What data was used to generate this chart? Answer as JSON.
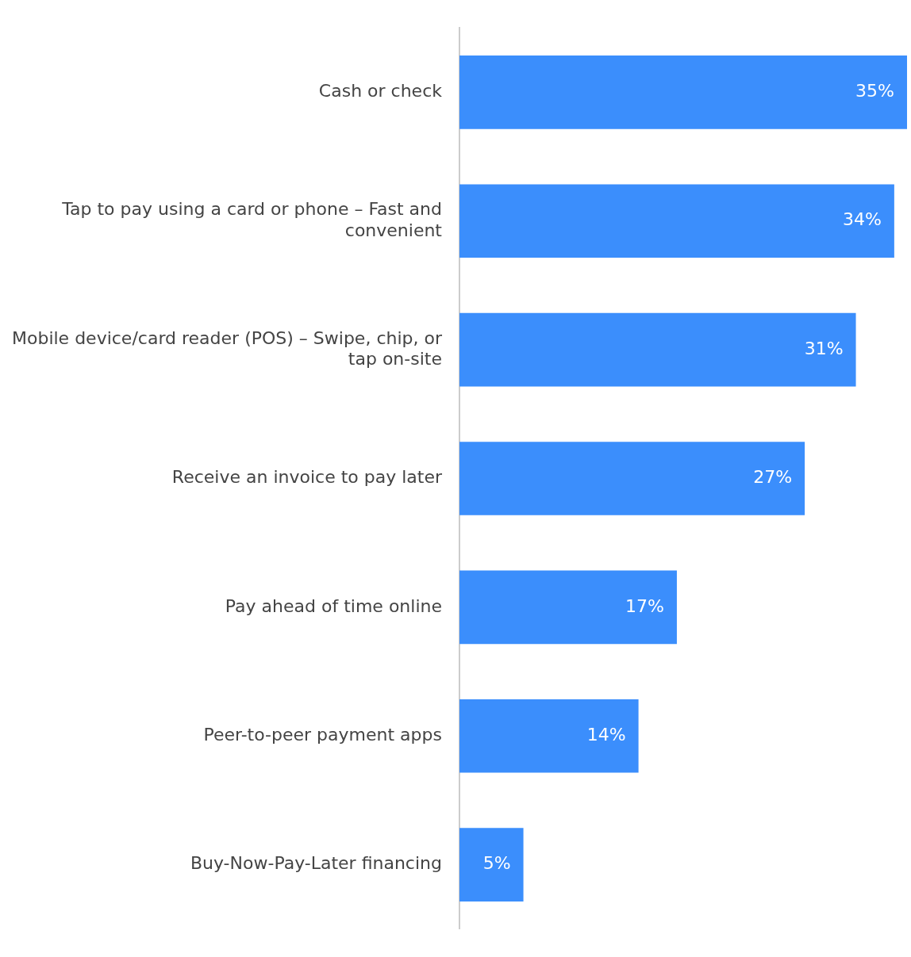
{
  "chart_data": {
    "type": "bar",
    "orientation": "horizontal",
    "categories": [
      "Cash or check",
      "Tap to pay using a card or phone – Fast and convenient",
      "Mobile device/card reader (POS) – Swipe, chip, or tap on-site",
      "Receive an invoice to pay later",
      "Pay ahead of time online",
      "Peer-to-peer payment apps",
      "Buy-Now-Pay-Later financing"
    ],
    "values": [
      35,
      34,
      31,
      27,
      17,
      14,
      5
    ],
    "value_labels": [
      "35%",
      "34%",
      "31%",
      "27%",
      "17%",
      "14%",
      "5%"
    ],
    "color": "#3b8efc",
    "xlim": [
      0,
      35
    ],
    "tick_labels": "y",
    "grid": false,
    "legend": false
  }
}
